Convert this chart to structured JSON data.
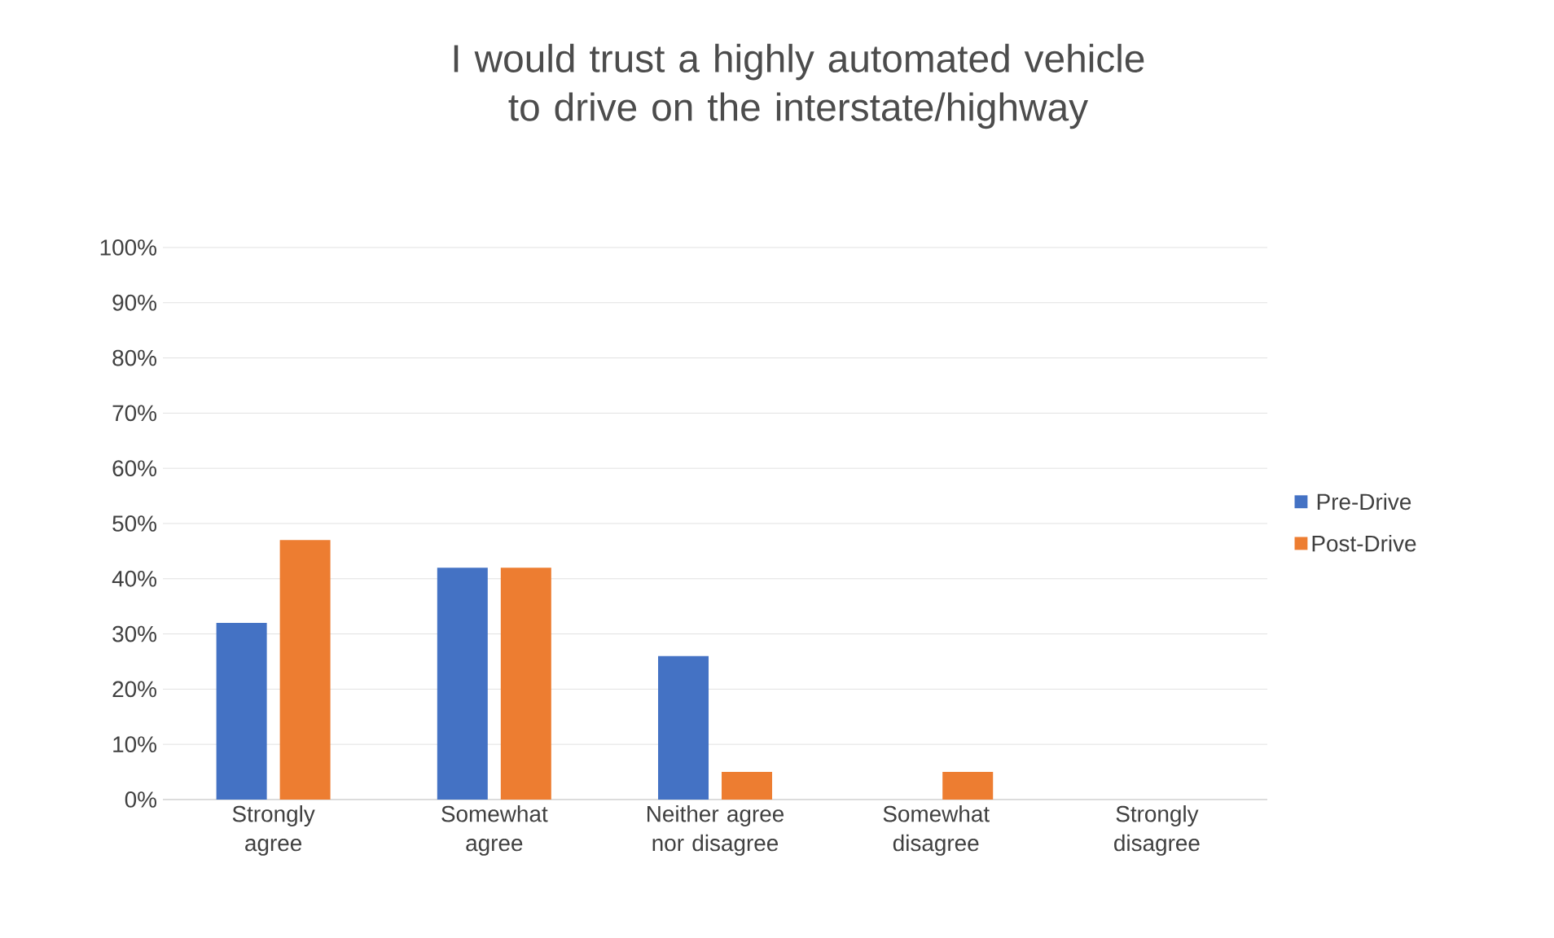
{
  "chart_data": {
    "type": "bar",
    "title": "I would trust a highly automated vehicle to drive on the interstate/highway",
    "categories": [
      "Strongly agree",
      "Somewhat agree",
      "Neither agree nor disagree",
      "Somewhat disagree",
      "Strongly disagree"
    ],
    "series": [
      {
        "name": "Pre-Drive",
        "color": "#4472c4",
        "values": [
          32,
          42,
          26,
          0,
          0
        ]
      },
      {
        "name": "Post-Drive",
        "color": "#ed7d31",
        "values": [
          47,
          42,
          5,
          5,
          0
        ]
      }
    ],
    "ylim": [
      0,
      100
    ],
    "yticks": [
      {
        "value": 0,
        "label": "0%"
      },
      {
        "value": 10,
        "label": "10%"
      },
      {
        "value": 20,
        "label": "20%"
      },
      {
        "value": 30,
        "label": "30%"
      },
      {
        "value": 40,
        "label": "40%"
      },
      {
        "value": 50,
        "label": "50%"
      },
      {
        "value": 60,
        "label": "60%"
      },
      {
        "value": 70,
        "label": "70%"
      },
      {
        "value": 80,
        "label": "80%"
      },
      {
        "value": 90,
        "label": "90%"
      },
      {
        "value": 100,
        "label": "100%"
      }
    ],
    "grid": "y",
    "legend": "right"
  }
}
